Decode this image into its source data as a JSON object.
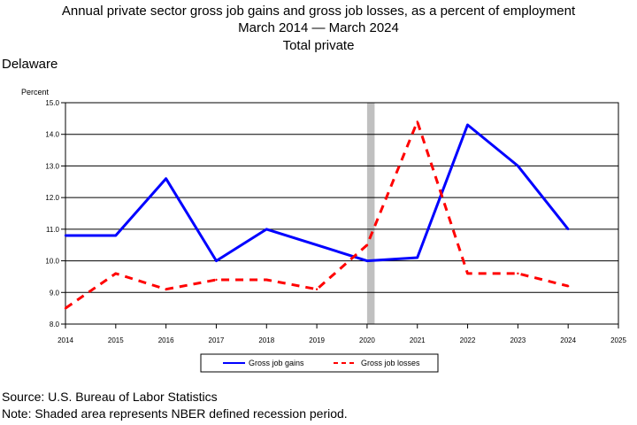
{
  "chart_data": {
    "type": "line",
    "title": "Annual private sector gross job gains and gross job losses, as a percent of employment",
    "subtitle_lines": [
      "March 2014 — March 2024",
      "Total private"
    ],
    "region": "Delaware",
    "ylabel": "Percent",
    "xlabel": "",
    "ylim": [
      8.0,
      15.0
    ],
    "xlim": [
      2014,
      2025
    ],
    "y_ticks": [
      "8.0",
      "9.0",
      "10.0",
      "11.0",
      "12.0",
      "13.0",
      "14.0",
      "15.0"
    ],
    "x_ticks": [
      "2014",
      "2015",
      "2016",
      "2017",
      "2018",
      "2019",
      "2020",
      "2021",
      "2022",
      "2023",
      "2024",
      "2025"
    ],
    "grid": "horizontal",
    "legend_position": "bottom-center",
    "recession_shading": {
      "start": 2020.0,
      "end": 2020.15,
      "color": "#c0c0c0"
    },
    "series": [
      {
        "name": "Gross job gains",
        "color": "#0000ff",
        "style": "solid",
        "x": [
          2014,
          2015,
          2016,
          2017,
          2018,
          2019,
          2020,
          2021,
          2022,
          2023,
          2024
        ],
        "values": [
          10.8,
          10.8,
          12.6,
          10.0,
          11.0,
          10.5,
          10.0,
          10.1,
          14.3,
          13.0,
          11.0
        ]
      },
      {
        "name": "Gross job losses",
        "color": "#ff0000",
        "style": "dashed",
        "x": [
          2014,
          2015,
          2016,
          2017,
          2018,
          2019,
          2020,
          2021,
          2022,
          2023,
          2024
        ],
        "values": [
          8.5,
          9.6,
          9.1,
          9.4,
          9.4,
          9.1,
          10.5,
          14.4,
          9.6,
          9.6,
          9.2
        ]
      }
    ]
  },
  "footer": {
    "source": "Source: U.S. Bureau of Labor Statistics",
    "note": "Note: Shaded area represents NBER defined recession period."
  }
}
